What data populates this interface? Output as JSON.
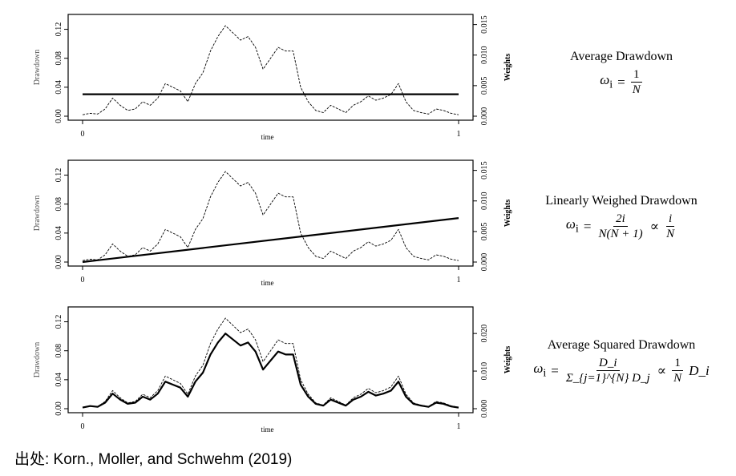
{
  "chart_data": [
    {
      "type": "line",
      "title": "Average Drawdown",
      "formula": {
        "lhs": "ω",
        "sub": "i",
        "eq": "=",
        "num": "1",
        "den": "N"
      },
      "xlabel": "time",
      "ylabel_left": "Drawdown",
      "ylabel_right": "Weights",
      "x_ticks": [
        "0",
        "1"
      ],
      "y_left_ticks": [
        "0.00",
        "0.04",
        "0.08",
        "0.12"
      ],
      "y_right_ticks": [
        "0.000",
        "0.005",
        "0.010",
        "0.015"
      ],
      "ylim_left": [
        0,
        0.135
      ],
      "ylim_right": [
        0,
        0.016
      ],
      "series": [
        {
          "role": "drawdown",
          "axis": "left",
          "style": "thin",
          "x": [
            0,
            0.02,
            0.04,
            0.06,
            0.08,
            0.1,
            0.12,
            0.14,
            0.16,
            0.18,
            0.2,
            0.22,
            0.24,
            0.26,
            0.28,
            0.3,
            0.32,
            0.34,
            0.36,
            0.38,
            0.4,
            0.42,
            0.44,
            0.46,
            0.48,
            0.5,
            0.52,
            0.54,
            0.56,
            0.58,
            0.6,
            0.62,
            0.64,
            0.66,
            0.68,
            0.7,
            0.72,
            0.74,
            0.76,
            0.78,
            0.8,
            0.82,
            0.84,
            0.86,
            0.88,
            0.9,
            0.92,
            0.94,
            0.96,
            0.98,
            1
          ],
          "y": [
            0.002,
            0.004,
            0.003,
            0.01,
            0.025,
            0.015,
            0.008,
            0.01,
            0.02,
            0.015,
            0.025,
            0.045,
            0.04,
            0.035,
            0.02,
            0.045,
            0.06,
            0.09,
            0.11,
            0.125,
            0.115,
            0.105,
            0.11,
            0.095,
            0.065,
            0.08,
            0.095,
            0.09,
            0.09,
            0.04,
            0.02,
            0.008,
            0.005,
            0.015,
            0.01,
            0.005,
            0.015,
            0.02,
            0.028,
            0.022,
            0.025,
            0.03,
            0.045,
            0.02,
            0.008,
            0.005,
            0.003,
            0.01,
            0.008,
            0.004,
            0.002
          ]
        },
        {
          "role": "weights",
          "axis": "right",
          "style": "thick",
          "x": [
            0,
            1
          ],
          "y": [
            0.0036,
            0.0036
          ]
        }
      ]
    },
    {
      "type": "line",
      "title": "Linearly Weighed Drawdown",
      "formula": {
        "lhs": "ω",
        "sub": "i",
        "eq": "=",
        "num": "2i",
        "den": "N(N + 1)",
        "prop": "∝",
        "num2": "i",
        "den2": "N"
      },
      "xlabel": "time",
      "ylabel_left": "Drawdown",
      "ylabel_right": "Weights",
      "x_ticks": [
        "0",
        "1"
      ],
      "y_left_ticks": [
        "0.00",
        "0.04",
        "0.08",
        "0.12"
      ],
      "y_right_ticks": [
        "0.000",
        "0.005",
        "0.010",
        "0.015"
      ],
      "ylim_left": [
        0,
        0.135
      ],
      "ylim_right": [
        0,
        0.016
      ],
      "series": [
        {
          "role": "drawdown",
          "axis": "left",
          "style": "thin",
          "x": [
            0,
            0.02,
            0.04,
            0.06,
            0.08,
            0.1,
            0.12,
            0.14,
            0.16,
            0.18,
            0.2,
            0.22,
            0.24,
            0.26,
            0.28,
            0.3,
            0.32,
            0.34,
            0.36,
            0.38,
            0.4,
            0.42,
            0.44,
            0.46,
            0.48,
            0.5,
            0.52,
            0.54,
            0.56,
            0.58,
            0.6,
            0.62,
            0.64,
            0.66,
            0.68,
            0.7,
            0.72,
            0.74,
            0.76,
            0.78,
            0.8,
            0.82,
            0.84,
            0.86,
            0.88,
            0.9,
            0.92,
            0.94,
            0.96,
            0.98,
            1
          ],
          "y": [
            0.002,
            0.004,
            0.003,
            0.01,
            0.025,
            0.015,
            0.008,
            0.01,
            0.02,
            0.015,
            0.025,
            0.045,
            0.04,
            0.035,
            0.02,
            0.045,
            0.06,
            0.09,
            0.11,
            0.125,
            0.115,
            0.105,
            0.11,
            0.095,
            0.065,
            0.08,
            0.095,
            0.09,
            0.09,
            0.04,
            0.02,
            0.008,
            0.005,
            0.015,
            0.01,
            0.005,
            0.015,
            0.02,
            0.028,
            0.022,
            0.025,
            0.03,
            0.045,
            0.02,
            0.008,
            0.005,
            0.003,
            0.01,
            0.008,
            0.004,
            0.002
          ]
        },
        {
          "role": "weights",
          "axis": "right",
          "style": "thick",
          "x": [
            0,
            1
          ],
          "y": [
            0.0,
            0.0072
          ]
        }
      ]
    },
    {
      "type": "line",
      "title": "Average Squared Drawdown",
      "formula": {
        "lhs": "ω",
        "sub": "i",
        "eq": "=",
        "num": "D_i",
        "den": "Σ_{j=1}^{N} D_j",
        "prop": "∝",
        "num2": "1",
        "den2": "N",
        "tail": "D_i"
      },
      "xlabel": "time",
      "ylabel_left": "Drawdown",
      "ylabel_right": "Weights",
      "x_ticks": [
        "0",
        "1"
      ],
      "y_left_ticks": [
        "0.00",
        "0.04",
        "0.08",
        "0.12"
      ],
      "y_right_ticks": [
        "0.000",
        "0.010",
        "0.020"
      ],
      "ylim_left": [
        0,
        0.135
      ],
      "ylim_right": [
        0,
        0.026
      ],
      "series": [
        {
          "role": "drawdown",
          "axis": "left",
          "style": "thin",
          "x": [
            0,
            0.02,
            0.04,
            0.06,
            0.08,
            0.1,
            0.12,
            0.14,
            0.16,
            0.18,
            0.2,
            0.22,
            0.24,
            0.26,
            0.28,
            0.3,
            0.32,
            0.34,
            0.36,
            0.38,
            0.4,
            0.42,
            0.44,
            0.46,
            0.48,
            0.5,
            0.52,
            0.54,
            0.56,
            0.58,
            0.6,
            0.62,
            0.64,
            0.66,
            0.68,
            0.7,
            0.72,
            0.74,
            0.76,
            0.78,
            0.8,
            0.82,
            0.84,
            0.86,
            0.88,
            0.9,
            0.92,
            0.94,
            0.96,
            0.98,
            1
          ],
          "y": [
            0.002,
            0.004,
            0.003,
            0.01,
            0.025,
            0.015,
            0.008,
            0.01,
            0.02,
            0.015,
            0.025,
            0.045,
            0.04,
            0.035,
            0.02,
            0.045,
            0.06,
            0.09,
            0.11,
            0.125,
            0.115,
            0.105,
            0.11,
            0.095,
            0.065,
            0.08,
            0.095,
            0.09,
            0.09,
            0.04,
            0.02,
            0.008,
            0.005,
            0.015,
            0.01,
            0.005,
            0.015,
            0.02,
            0.028,
            0.022,
            0.025,
            0.03,
            0.045,
            0.02,
            0.008,
            0.005,
            0.003,
            0.01,
            0.008,
            0.004,
            0.002
          ]
        },
        {
          "role": "weights",
          "axis": "right",
          "style": "thick",
          "x": [
            0,
            0.02,
            0.04,
            0.06,
            0.08,
            0.1,
            0.12,
            0.14,
            0.16,
            0.18,
            0.2,
            0.22,
            0.24,
            0.26,
            0.28,
            0.3,
            0.32,
            0.34,
            0.36,
            0.38,
            0.4,
            0.42,
            0.44,
            0.46,
            0.48,
            0.5,
            0.52,
            0.54,
            0.56,
            0.58,
            0.6,
            0.62,
            0.64,
            0.66,
            0.68,
            0.7,
            0.72,
            0.74,
            0.76,
            0.78,
            0.8,
            0.82,
            0.84,
            0.86,
            0.88,
            0.9,
            0.92,
            0.94,
            0.96,
            0.98,
            1
          ],
          "y": [
            0.0003,
            0.0007,
            0.0005,
            0.0016,
            0.004,
            0.0024,
            0.0013,
            0.0016,
            0.0032,
            0.0024,
            0.004,
            0.0072,
            0.0064,
            0.0056,
            0.0032,
            0.0072,
            0.0096,
            0.0144,
            0.0176,
            0.02,
            0.0184,
            0.0168,
            0.0176,
            0.0152,
            0.0104,
            0.0128,
            0.0152,
            0.0144,
            0.0144,
            0.0064,
            0.0032,
            0.0013,
            0.0008,
            0.0024,
            0.0016,
            0.0008,
            0.0024,
            0.0032,
            0.0045,
            0.0035,
            0.004,
            0.0048,
            0.0072,
            0.0032,
            0.0013,
            0.0008,
            0.0005,
            0.0016,
            0.0013,
            0.0006,
            0.0003
          ]
        }
      ]
    }
  ],
  "source_label": "出处:  Korn., Moller, and Schwehm (2019)"
}
